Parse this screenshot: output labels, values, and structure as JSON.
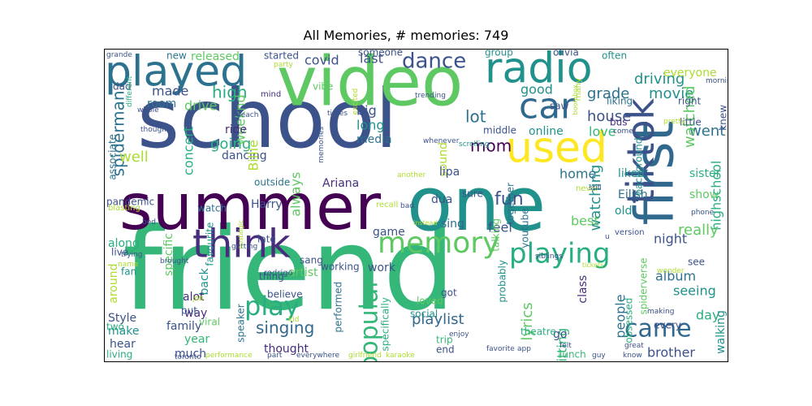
{
  "title": "All Memories, # memories: 749",
  "palette": [
    "#440154",
    "#472d7b",
    "#3b528b",
    "#2c728e",
    "#21918c",
    "#28ae80",
    "#5ec962",
    "#addc30",
    "#fde725"
  ],
  "words": [
    {
      "t": "friend",
      "c": "#35b779"
    },
    {
      "t": "school",
      "c": "#3b528b"
    },
    {
      "t": "summer",
      "c": "#440154"
    },
    {
      "t": "one",
      "c": "#21918c"
    },
    {
      "t": "video",
      "c": "#5ec962"
    },
    {
      "t": "first",
      "c": "#31688e"
    },
    {
      "t": "played",
      "c": "#2c728e"
    },
    {
      "t": "radio",
      "c": "#21918c"
    },
    {
      "t": "used",
      "c": "#fde725"
    },
    {
      "t": "tiktok",
      "c": "#3b528b"
    },
    {
      "t": "think",
      "c": "#472d7b"
    },
    {
      "t": "car",
      "c": "#31688e"
    },
    {
      "t": "memory",
      "c": "#5ec962"
    },
    {
      "t": "playing",
      "c": "#28ae80"
    },
    {
      "t": "play",
      "c": "#28ae80"
    },
    {
      "t": "came",
      "c": "#31688e"
    },
    {
      "t": "dance",
      "c": "#3b528b"
    },
    {
      "t": "popular",
      "c": "#35b779"
    },
    {
      "t": "driving",
      "c": "#21918c"
    },
    {
      "t": "fun",
      "c": "#3b528b"
    },
    {
      "t": "singing",
      "c": "#31688e"
    },
    {
      "t": "high",
      "c": "#28ae80"
    },
    {
      "t": "house",
      "c": "#3b528b"
    },
    {
      "t": "movie",
      "c": "#21918c"
    },
    {
      "t": "grade",
      "c": "#2c728e"
    },
    {
      "t": "everyone",
      "c": "#addc30"
    },
    {
      "t": "always",
      "c": "#5ec962"
    },
    {
      "t": "watching",
      "c": "#21918c"
    },
    {
      "t": "spiderman",
      "c": "#2c728e"
    },
    {
      "t": "concert",
      "c": "#28ae80"
    },
    {
      "t": "going",
      "c": "#28ae80"
    },
    {
      "t": "well",
      "c": "#addc30"
    },
    {
      "t": "lot",
      "c": "#2c728e"
    },
    {
      "t": "mom",
      "c": "#440154"
    },
    {
      "t": "covid",
      "c": "#3b528b"
    },
    {
      "t": "last",
      "c": "#3b528b"
    },
    {
      "t": "went",
      "c": "#2c728e"
    },
    {
      "t": "watched",
      "c": "#5ec962"
    },
    {
      "t": "room",
      "c": "#2c728e"
    },
    {
      "t": "drive",
      "c": "#5ec962"
    },
    {
      "t": "made",
      "c": "#3b528b"
    },
    {
      "t": "weeknd",
      "c": "#5ec962"
    },
    {
      "t": "ride",
      "c": "#472d7b"
    },
    {
      "t": "dancing",
      "c": "#3b528b"
    },
    {
      "t": "Billie",
      "c": "#addc30"
    },
    {
      "t": "big",
      "c": "#3b528b"
    },
    {
      "t": "long",
      "c": "#21918c"
    },
    {
      "t": "media",
      "c": "#2c728e"
    },
    {
      "t": "good",
      "c": "#21918c"
    },
    {
      "t": "online",
      "c": "#21918c"
    },
    {
      "t": "love",
      "c": "#35b779"
    },
    {
      "t": "home",
      "c": "#2c728e"
    },
    {
      "t": "liked",
      "c": "#21918c"
    },
    {
      "t": "sister",
      "c": "#28ae80"
    },
    {
      "t": "show",
      "c": "#5ec962"
    },
    {
      "t": "background",
      "c": "#21918c"
    },
    {
      "t": "Eilish",
      "c": "#2c728e"
    },
    {
      "t": "highschool",
      "c": "#28ae80"
    },
    {
      "t": "really",
      "c": "#5ec962"
    },
    {
      "t": "night",
      "c": "#3b528b"
    },
    {
      "t": "album",
      "c": "#2c728e"
    },
    {
      "t": "seeing",
      "c": "#21918c"
    },
    {
      "t": "day",
      "c": "#28ae80"
    },
    {
      "t": "brother",
      "c": "#3b528b"
    },
    {
      "t": "walking",
      "c": "#21918c"
    },
    {
      "t": "people",
      "c": "#2c728e"
    },
    {
      "t": "sitting",
      "c": "#35b779"
    },
    {
      "t": "class",
      "c": "#472d7b"
    },
    {
      "t": "best",
      "c": "#5ec962"
    },
    {
      "t": "old",
      "c": "#21918c"
    },
    {
      "t": "go",
      "c": "#3b528b"
    },
    {
      "t": "lunch",
      "c": "#35b779"
    },
    {
      "t": "playlist",
      "c": "#31688e"
    },
    {
      "t": "lyrics",
      "c": "#5ec962"
    },
    {
      "t": "game",
      "c": "#3b528b"
    },
    {
      "t": "work",
      "c": "#3b528b"
    },
    {
      "t": "together",
      "c": "#2c728e"
    },
    {
      "t": "youtube",
      "c": "#2c728e"
    },
    {
      "t": "sing",
      "c": "#31688e"
    },
    {
      "t": "feel",
      "c": "#3b528b"
    },
    {
      "t": "sound",
      "c": "#addc30"
    },
    {
      "t": "lipa",
      "c": "#3b528b"
    },
    {
      "t": "dua",
      "c": "#3b528b"
    },
    {
      "t": "Ariana",
      "c": "#472d7b"
    },
    {
      "t": "Harry",
      "c": "#3b528b"
    },
    {
      "t": "watch",
      "c": "#2c728e"
    },
    {
      "t": "favourite",
      "c": "#21918c"
    },
    {
      "t": "specific",
      "c": "#5ec962"
    },
    {
      "t": "pandemic",
      "c": "#3b528b"
    },
    {
      "t": "back",
      "c": "#21918c"
    },
    {
      "t": "alot",
      "c": "#472d7b"
    },
    {
      "t": "way",
      "c": "#472d7b"
    },
    {
      "t": "family",
      "c": "#3b528b"
    },
    {
      "t": "year",
      "c": "#35b779"
    },
    {
      "t": "much",
      "c": "#3b528b"
    },
    {
      "t": "make",
      "c": "#21918c"
    },
    {
      "t": "hear",
      "c": "#3b528b"
    },
    {
      "t": "Style",
      "c": "#3b528b"
    },
    {
      "t": "around",
      "c": "#addc30"
    },
    {
      "t": "along",
      "c": "#28ae80"
    },
    {
      "t": "fan",
      "c": "#21918c"
    },
    {
      "t": "live",
      "c": "#3b528b"
    },
    {
      "t": "two",
      "c": "#28ae80"
    },
    {
      "t": "living",
      "c": "#28ae80"
    },
    {
      "t": "artist",
      "c": "#5ec962"
    },
    {
      "t": "thought",
      "c": "#472d7b"
    },
    {
      "t": "sang",
      "c": "#3b528b"
    },
    {
      "t": "speaker",
      "c": "#2c728e"
    },
    {
      "t": "performed",
      "c": "#2c728e"
    },
    {
      "t": "specifically",
      "c": "#28ae80"
    },
    {
      "t": "got",
      "c": "#3b528b"
    },
    {
      "t": "released",
      "c": "#5ec962"
    },
    {
      "t": "started",
      "c": "#3b528b"
    },
    {
      "t": "someone",
      "c": "#3b528b"
    },
    {
      "t": "group",
      "c": "#21918c"
    },
    {
      "t": "olivia",
      "c": "#3b528b"
    },
    {
      "t": "often",
      "c": "#21918c"
    },
    {
      "t": "new",
      "c": "#2c728e"
    },
    {
      "t": "dad",
      "c": "#3b528b"
    },
    {
      "t": "vibe",
      "c": "#5ec962"
    },
    {
      "t": "saw",
      "c": "#3b528b"
    },
    {
      "t": "middle",
      "c": "#3b528b"
    },
    {
      "t": "bus",
      "c": "#472d7b"
    },
    {
      "t": "liking",
      "c": "#2c728e"
    },
    {
      "t": "right",
      "c": "#3b528b"
    },
    {
      "t": "little",
      "c": "#3b528b"
    },
    {
      "t": "knew",
      "c": "#3b528b"
    },
    {
      "t": "mind",
      "c": "#472d7b"
    },
    {
      "t": "outside",
      "c": "#2c728e"
    },
    {
      "t": "working",
      "c": "#3b528b"
    },
    {
      "t": "late",
      "c": "#3b528b"
    },
    {
      "t": "loved",
      "c": "#5ec962"
    },
    {
      "t": "thing",
      "c": "#3b528b"
    },
    {
      "t": "believe",
      "c": "#3b528b"
    },
    {
      "t": "social",
      "c": "#21918c"
    },
    {
      "t": "trip",
      "c": "#35b779"
    },
    {
      "t": "end",
      "c": "#3b528b"
    },
    {
      "t": "theatre",
      "c": "#28ae80"
    },
    {
      "t": "viral",
      "c": "#5ec962"
    },
    {
      "t": "put",
      "c": "#3b528b"
    },
    {
      "t": "version",
      "c": "#3b528b"
    },
    {
      "t": "spiderverse",
      "c": "#5ec962"
    },
    {
      "t": "see",
      "c": "#3b528b"
    },
    {
      "t": "every",
      "c": "#3b528b"
    },
    {
      "t": "associate",
      "c": "#2c728e"
    },
    {
      "t": "obsessed",
      "c": "#28ae80"
    },
    {
      "t": "talking",
      "c": "#5ec962"
    },
    {
      "t": "probably",
      "c": "#21918c"
    },
    {
      "t": "sure",
      "c": "#3b528b"
    },
    {
      "t": "recall",
      "c": "#addc30"
    },
    {
      "t": "blasting",
      "c": "#addc30"
    },
    {
      "t": "rodrigo",
      "c": "#3b528b"
    },
    {
      "t": "toronto",
      "c": "#3b528b"
    },
    {
      "t": "everywhere",
      "c": "#3b528b"
    },
    {
      "t": "girlfriend",
      "c": "#addc30"
    },
    {
      "t": "many",
      "c": "#addc30"
    },
    {
      "t": "felt",
      "c": "#3b528b"
    },
    {
      "t": "great",
      "c": "#3b528b"
    },
    {
      "t": "guy",
      "c": "#3b528b"
    },
    {
      "t": "know",
      "c": "#3b528b"
    },
    {
      "t": "party",
      "c": "#addc30"
    },
    {
      "t": "grande",
      "c": "#3b528b"
    },
    {
      "t": "different",
      "c": "#28ae80"
    },
    {
      "t": "whole",
      "c": "#3b528b"
    },
    {
      "t": "beach",
      "c": "#3b528b"
    },
    {
      "t": "times",
      "c": "#3b528b"
    },
    {
      "t": "trending",
      "c": "#3b528b"
    },
    {
      "t": "excited",
      "c": "#addc30"
    },
    {
      "t": "though",
      "c": "#3b528b"
    },
    {
      "t": "scrolling",
      "c": "#21918c"
    },
    {
      "t": "memories",
      "c": "#3b528b"
    },
    {
      "t": "whenever",
      "c": "#3b528b"
    },
    {
      "t": "another",
      "c": "#addc30"
    },
    {
      "t": "never",
      "c": "#addc30"
    },
    {
      "t": "still",
      "c": "#3b528b"
    },
    {
      "t": "bad",
      "c": "#3b528b"
    },
    {
      "t": "phone",
      "c": "#3b528b"
    },
    {
      "t": "morning",
      "c": "#3b528b"
    },
    {
      "t": "pretty",
      "c": "#addc30"
    },
    {
      "t": "enjoy",
      "c": "#3b528b"
    },
    {
      "t": "favorite",
      "c": "#3b528b"
    },
    {
      "t": "performance",
      "c": "#addc30"
    },
    {
      "t": "part",
      "c": "#3b528b"
    },
    {
      "t": "kid",
      "c": "#addc30"
    },
    {
      "t": "karaoke",
      "c": "#addc30"
    },
    {
      "t": "siblings",
      "c": "#3b528b"
    },
    {
      "t": "brought",
      "c": "#3b528b"
    },
    {
      "t": "getting",
      "c": "#3b528b"
    },
    {
      "t": "trying",
      "c": "#3b528b"
    },
    {
      "t": "job",
      "c": "#addc30"
    },
    {
      "t": "making",
      "c": "#3b528b"
    },
    {
      "t": "wonder",
      "c": "#addc30"
    },
    {
      "t": "app",
      "c": "#3b528b"
    },
    {
      "t": "come",
      "c": "#3b528b"
    },
    {
      "t": "u",
      "c": "#3b528b"
    },
    {
      "t": "name",
      "c": "#addc30"
    },
    {
      "t": "bed",
      "c": "#3b528b"
    },
    {
      "t": "boombox",
      "c": "#addc30"
    },
    {
      "t": "nostalgic",
      "c": "#addc30"
    },
    {
      "t": "instead",
      "c": "#addc30"
    },
    {
      "t": "tickets",
      "c": "#addc30"
    }
  ]
}
